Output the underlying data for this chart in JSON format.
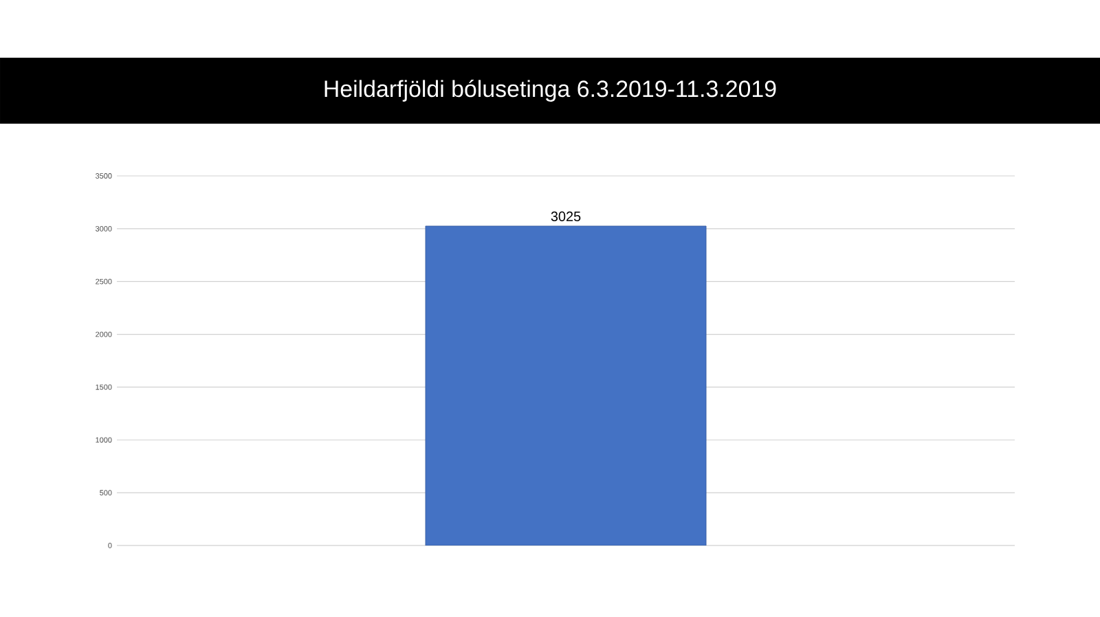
{
  "chart_data": {
    "type": "bar",
    "title": "Heildarfjöldi bólusetinga 6.3.2019-11.3.2019",
    "categories": [
      null
    ],
    "values": [
      3025
    ],
    "color": "#4472c4",
    "ylim": [
      0,
      3500
    ],
    "yticks": [
      0,
      500,
      1000,
      1500,
      2000,
      2500,
      3000,
      3500
    ],
    "grid": "y",
    "data_labels": true
  }
}
